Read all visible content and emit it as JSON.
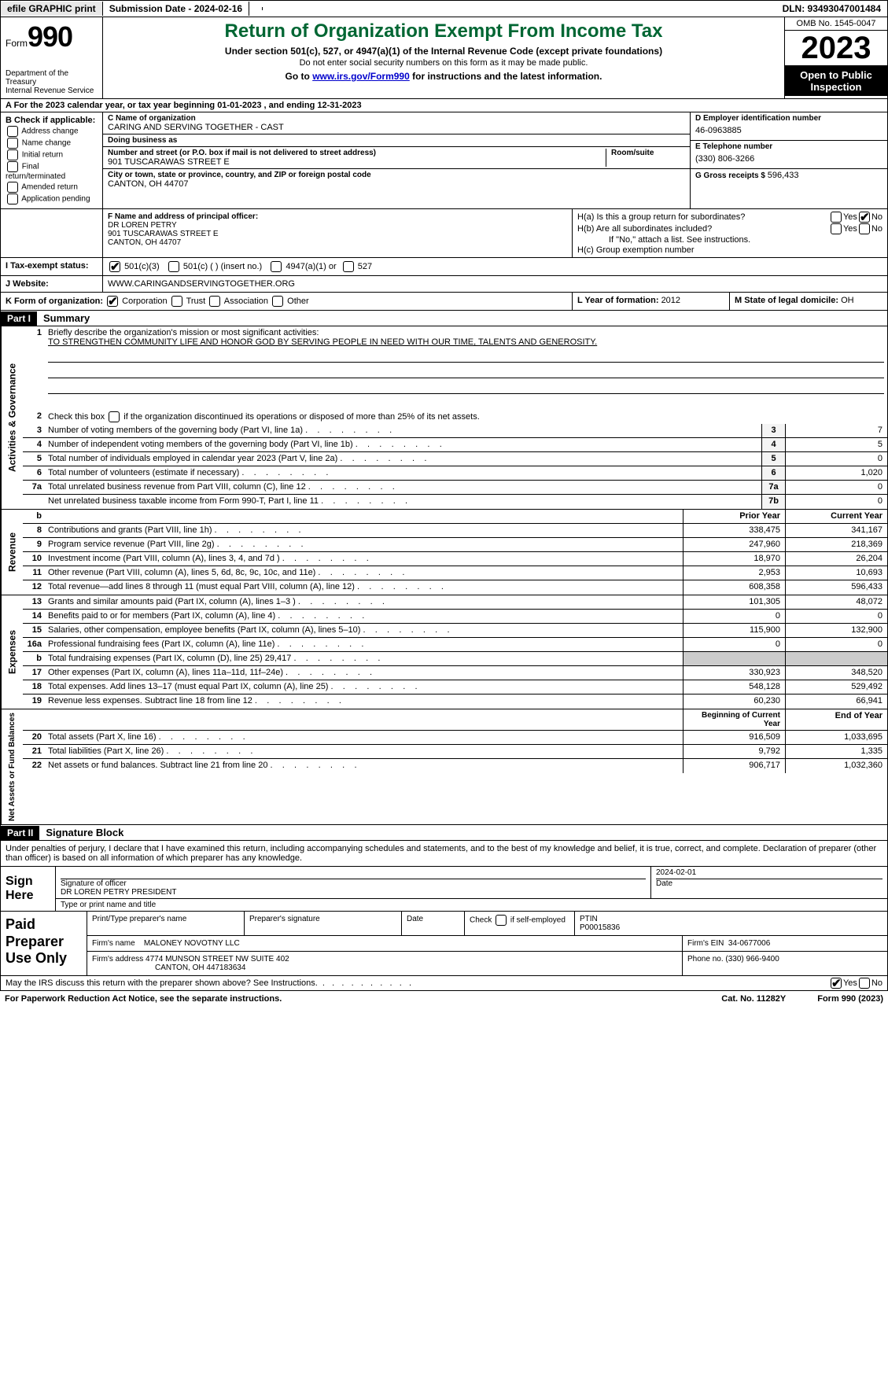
{
  "topbar": {
    "efile": "efile GRAPHIC print",
    "submission_label": "Submission Date - 2024-02-16",
    "dln_label": "DLN: 93493047001484"
  },
  "header": {
    "form_prefix": "Form",
    "form_number": "990",
    "dept": "Department of the Treasury",
    "irs": "Internal Revenue Service",
    "title": "Return of Organization Exempt From Income Tax",
    "sub1": "Under section 501(c), 527, or 4947(a)(1) of the Internal Revenue Code (except private foundations)",
    "sub2": "Do not enter social security numbers on this form as it may be made public.",
    "sub3_pre": "Go to ",
    "sub3_link": "www.irs.gov/Form990",
    "sub3_post": " for instructions and the latest information.",
    "omb": "OMB No. 1545-0047",
    "year": "2023",
    "inspection": "Open to Public Inspection"
  },
  "section_a": "A  For the 2023 calendar year, or tax year beginning 01-01-2023    , and ending 12-31-2023",
  "box_b": {
    "hdr": "B Check if applicable:",
    "opts": [
      "Address change",
      "Name change",
      "Initial return",
      "Final return/terminated",
      "Amended return",
      "Application pending"
    ]
  },
  "box_c": {
    "name_lbl": "C Name of organization",
    "name": "CARING AND SERVING TOGETHER - CAST",
    "dba_lbl": "Doing business as",
    "dba": "",
    "street_lbl": "Number and street (or P.O. box if mail is not delivered to street address)",
    "street": "901 TUSCARAWAS STREET E",
    "room_lbl": "Room/suite",
    "city_lbl": "City or town, state or province, country, and ZIP or foreign postal code",
    "city": "CANTON, OH  44707"
  },
  "box_d": {
    "ein_lbl": "D Employer identification number",
    "ein": "46-0963885",
    "phone_lbl": "E Telephone number",
    "phone": "(330) 806-3266",
    "gross_lbl": "G Gross receipts $",
    "gross": "596,433"
  },
  "box_f": {
    "lbl": "F  Name and address of principal officer:",
    "name": "DR LOREN PETRY",
    "street": "901 TUSCARAWAS STREET E",
    "city": "CANTON, OH  44707"
  },
  "box_h": {
    "ha_lbl": "H(a)  Is this a group return for subordinates?",
    "hb_lbl": "H(b)  Are all subordinates included?",
    "hb_note": "If \"No,\" attach a list. See instructions.",
    "hc_lbl": "H(c)  Group exemption number"
  },
  "tax_status": {
    "lbl": "I    Tax-exempt status:",
    "o1": "501(c)(3)",
    "o2": "501(c) (  ) (insert no.)",
    "o3": "4947(a)(1) or",
    "o4": "527"
  },
  "website": {
    "lbl": "J    Website:",
    "val": "WWW.CARINGANDSERVINGTOGETHER.ORG"
  },
  "box_k": {
    "lbl": "K Form of organization:",
    "opts": [
      "Corporation",
      "Trust",
      "Association",
      "Other"
    ]
  },
  "box_l": {
    "lbl": "L Year of formation: ",
    "val": "2012"
  },
  "box_m": {
    "lbl": "M State of legal domicile: ",
    "val": "OH"
  },
  "part1": {
    "num": "Part I",
    "title": "Summary"
  },
  "summary": {
    "line1_lbl": "Briefly describe the organization's mission or most significant activities:",
    "line1_val": "TO STRENGTHEN COMMUNITY LIFE AND HONOR GOD BY SERVING PEOPLE IN NEED WITH OUR TIME, TALENTS AND GENEROSITY.",
    "line2": "Check this box       if the organization discontinued its operations or disposed of more than 25% of its net assets.",
    "lines_gov": [
      {
        "n": "3",
        "d": "Number of voting members of the governing body (Part VI, line 1a)",
        "box": "3",
        "v": "7"
      },
      {
        "n": "4",
        "d": "Number of independent voting members of the governing body (Part VI, line 1b)",
        "box": "4",
        "v": "5"
      },
      {
        "n": "5",
        "d": "Total number of individuals employed in calendar year 2023 (Part V, line 2a)",
        "box": "5",
        "v": "0"
      },
      {
        "n": "6",
        "d": "Total number of volunteers (estimate if necessary)",
        "box": "6",
        "v": "1,020"
      },
      {
        "n": "7a",
        "d": "Total unrelated business revenue from Part VIII, column (C), line 12",
        "box": "7a",
        "v": "0"
      },
      {
        "n": "",
        "d": "Net unrelated business taxable income from Form 990-T, Part I, line 11",
        "box": "7b",
        "v": "0"
      }
    ],
    "prior_year": "Prior Year",
    "current_year": "Current Year",
    "lines_rev": [
      {
        "n": "8",
        "d": "Contributions and grants (Part VIII, line 1h)",
        "p": "338,475",
        "c": "341,167"
      },
      {
        "n": "9",
        "d": "Program service revenue (Part VIII, line 2g)",
        "p": "247,960",
        "c": "218,369"
      },
      {
        "n": "10",
        "d": "Investment income (Part VIII, column (A), lines 3, 4, and 7d )",
        "p": "18,970",
        "c": "26,204"
      },
      {
        "n": "11",
        "d": "Other revenue (Part VIII, column (A), lines 5, 6d, 8c, 9c, 10c, and 11e)",
        "p": "2,953",
        "c": "10,693"
      },
      {
        "n": "12",
        "d": "Total revenue—add lines 8 through 11 (must equal Part VIII, column (A), line 12)",
        "p": "608,358",
        "c": "596,433"
      }
    ],
    "lines_exp": [
      {
        "n": "13",
        "d": "Grants and similar amounts paid (Part IX, column (A), lines 1–3 )",
        "p": "101,305",
        "c": "48,072"
      },
      {
        "n": "14",
        "d": "Benefits paid to or for members (Part IX, column (A), line 4)",
        "p": "0",
        "c": "0"
      },
      {
        "n": "15",
        "d": "Salaries, other compensation, employee benefits (Part IX, column (A), lines 5–10)",
        "p": "115,900",
        "c": "132,900"
      },
      {
        "n": "16a",
        "d": "Professional fundraising fees (Part IX, column (A), line 11e)",
        "p": "0",
        "c": "0"
      },
      {
        "n": "b",
        "d": "Total fundraising expenses (Part IX, column (D), line 25) 29,417",
        "p": "",
        "c": "",
        "shaded": true
      },
      {
        "n": "17",
        "d": "Other expenses (Part IX, column (A), lines 11a–11d, 11f–24e)",
        "p": "330,923",
        "c": "348,520"
      },
      {
        "n": "18",
        "d": "Total expenses. Add lines 13–17 (must equal Part IX, column (A), line 25)",
        "p": "548,128",
        "c": "529,492"
      },
      {
        "n": "19",
        "d": "Revenue less expenses. Subtract line 18 from line 12",
        "p": "60,230",
        "c": "66,941"
      }
    ],
    "begin_year": "Beginning of Current Year",
    "end_year": "End of Year",
    "lines_net": [
      {
        "n": "20",
        "d": "Total assets (Part X, line 16)",
        "p": "916,509",
        "c": "1,033,695"
      },
      {
        "n": "21",
        "d": "Total liabilities (Part X, line 26)",
        "p": "9,792",
        "c": "1,335"
      },
      {
        "n": "22",
        "d": "Net assets or fund balances. Subtract line 21 from line 20",
        "p": "906,717",
        "c": "1,032,360"
      }
    ]
  },
  "part2": {
    "num": "Part II",
    "title": "Signature Block"
  },
  "sig_decl": "Under penalties of perjury, I declare that I have examined this return, including accompanying schedules and statements, and to the best of my knowledge and belief, it is true, correct, and complete. Declaration of preparer (other than officer) is based on all information of which preparer has any knowledge.",
  "sign": {
    "here": "Sign Here",
    "sig_lbl": "Signature of officer",
    "officer": "DR LOREN PETRY PRESIDENT",
    "type_lbl": "Type or print name and title",
    "date_lbl": "Date",
    "date": "2024-02-01"
  },
  "paid": {
    "hdr": "Paid Preparer Use Only",
    "name_lbl": "Print/Type preparer's name",
    "sig_lbl": "Preparer's signature",
    "date_lbl": "Date",
    "check_lbl": "Check        if self-employed",
    "ptin_lbl": "PTIN",
    "ptin": "P00015836",
    "firm_name_lbl": "Firm's name",
    "firm_name": "MALONEY NOVOTNY LLC",
    "firm_ein_lbl": "Firm's EIN",
    "firm_ein": "34-0677006",
    "firm_addr_lbl": "Firm's address",
    "firm_addr1": "4774 MUNSON STREET NW SUITE 402",
    "firm_addr2": "CANTON, OH  447183634",
    "phone_lbl": "Phone no.",
    "phone": "(330) 966-9400"
  },
  "footer": {
    "discuss": "May the IRS discuss this return with the preparer shown above? See Instructions.",
    "paperwork": "For Paperwork Reduction Act Notice, see the separate instructions.",
    "cat": "Cat. No. 11282Y",
    "form": "Form 990 (2023)"
  },
  "colors": {
    "title_green": "#006633",
    "link_blue": "#0000cc"
  }
}
